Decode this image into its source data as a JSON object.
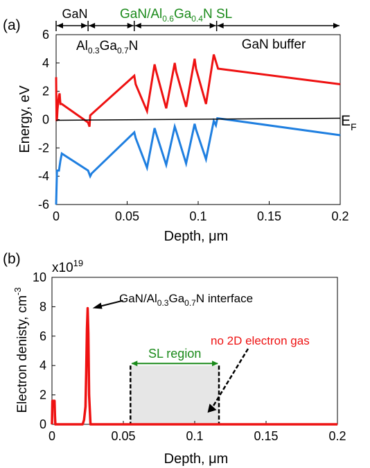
{
  "chart_data": [
    {
      "panel": "(a)",
      "type": "line",
      "xlabel": "Depth, μm",
      "ylabel": "Energy, eV",
      "xlim": [
        0,
        0.2
      ],
      "ylim": [
        -6,
        6
      ],
      "x_ticks": [
        "0",
        "0.05",
        "0.1",
        "0.15",
        "0.2"
      ],
      "y_ticks": [
        "-6",
        "-4",
        "-2",
        "0",
        "2",
        "4",
        "6"
      ],
      "grid": false,
      "region_labels": {
        "gan": "GaN",
        "algan": {
          "base": "Al",
          "sub1": "0.3",
          "mid": "Ga",
          "sub2": "0.7",
          "end": "N"
        },
        "sl": {
          "base": "GaN/Al",
          "sub1": "0.6",
          "mid": "Ga",
          "sub2": "0.4",
          "end": "N SL"
        },
        "buffer": "GaN buffer"
      },
      "region_bounds_um": [
        0,
        0.0225,
        0.055,
        0.113,
        0.2
      ],
      "fermi_label": {
        "base": "E",
        "sub": "F"
      },
      "colors": {
        "conduction_band": "#ee1111",
        "valence_band": "#1f7fe0",
        "fermi": "#000000",
        "sl_label": "#1a8a1a"
      },
      "series": [
        {
          "x": [
            0,
            0.0003,
            0.0006,
            0.001,
            0.0015,
            0.002,
            0.0025,
            0.0028,
            0.003,
            0.004,
            0.0225,
            0.0235,
            0.024,
            0.055,
            0.056,
            0.064,
            0.0693,
            0.0705,
            0.0775,
            0.0835,
            0.0845,
            0.0915,
            0.0975,
            0.0985,
            0.1055,
            0.111,
            0.1125,
            0.114,
            0.2
          ],
          "y": [
            3.0,
            -0.1,
            0,
            0.7,
            1.3,
            1.7,
            1.85,
            1.4,
            1.1,
            1.1,
            -0.2,
            -0.5,
            0.3,
            3.1,
            2.5,
            0.6,
            3.9,
            3.4,
            0.8,
            4.0,
            3.4,
            0.9,
            4.3,
            3.6,
            1.1,
            4.6,
            4.1,
            3.6,
            2.5
          ]
        },
        {
          "x": [
            0,
            0.0006,
            0.002,
            0.003,
            0.004,
            0.0225,
            0.024,
            0.025,
            0.055,
            0.056,
            0.064,
            0.0693,
            0.0705,
            0.0775,
            0.0835,
            0.0845,
            0.0915,
            0.0975,
            0.0985,
            0.1055,
            0.111,
            0.1125,
            0.1135,
            0.2
          ],
          "y": [
            -6.0,
            -3.6,
            -3.6,
            -2.9,
            -2.4,
            -3.6,
            -4.0,
            -3.8,
            -0.9,
            -1.3,
            -3.4,
            -0.6,
            -1.0,
            -3.2,
            -0.5,
            -0.8,
            -3.1,
            -0.3,
            -0.7,
            -2.8,
            -0.1,
            -0.4,
            0.1,
            -1.1
          ]
        },
        {
          "x": [
            0,
            0.2
          ],
          "y": [
            -0.05,
            0.1
          ]
        }
      ]
    },
    {
      "panel": "(b)",
      "type": "line",
      "xlabel": "Depth, μm",
      "ylabel_base": "Electron denisty, cm",
      "ylabel_exp": "-3",
      "multiplier_base": "x10",
      "multiplier_exp": "19",
      "xlim": [
        0,
        0.2
      ],
      "ylim": [
        0,
        10
      ],
      "x_ticks": [
        "0",
        "0.05",
        "0.1",
        "0.15",
        "0.2"
      ],
      "y_ticks": [
        "0",
        "2",
        "4",
        "6",
        "8",
        "10"
      ],
      "grid": false,
      "colors": {
        "density": "#ee1111",
        "sl_label": "#1a8a1a",
        "no_2deg": "#ee1111",
        "sl_box": "#e6e6e6"
      },
      "sl_region": {
        "label": "SL region",
        "x_range": [
          0.055,
          0.117
        ],
        "box_top": 4.0
      },
      "annotations": {
        "interface": {
          "base": "GaN/Al",
          "sub1": "0.3",
          "mid": "Ga",
          "sub2": "0.7",
          "end": "N interface",
          "point": [
            0.0265,
            7.9
          ]
        },
        "no_2deg": {
          "text": "no 2D electron gas",
          "point": [
            0.109,
            0.6
          ]
        }
      },
      "series": [
        {
          "x": [
            0,
            0.0003,
            0.0006,
            0.0018,
            0.0021,
            0.0024,
            0.0215,
            0.0225,
            0.0235,
            0.024,
            0.0245,
            0.025,
            0.0255,
            0.026,
            0.027,
            0.2
          ],
          "y": [
            0,
            1.6,
            1.6,
            1.6,
            0.6,
            0,
            0,
            0.3,
            1.2,
            3.5,
            6.5,
            7.9,
            6.2,
            2.0,
            0,
            0
          ]
        }
      ]
    }
  ]
}
